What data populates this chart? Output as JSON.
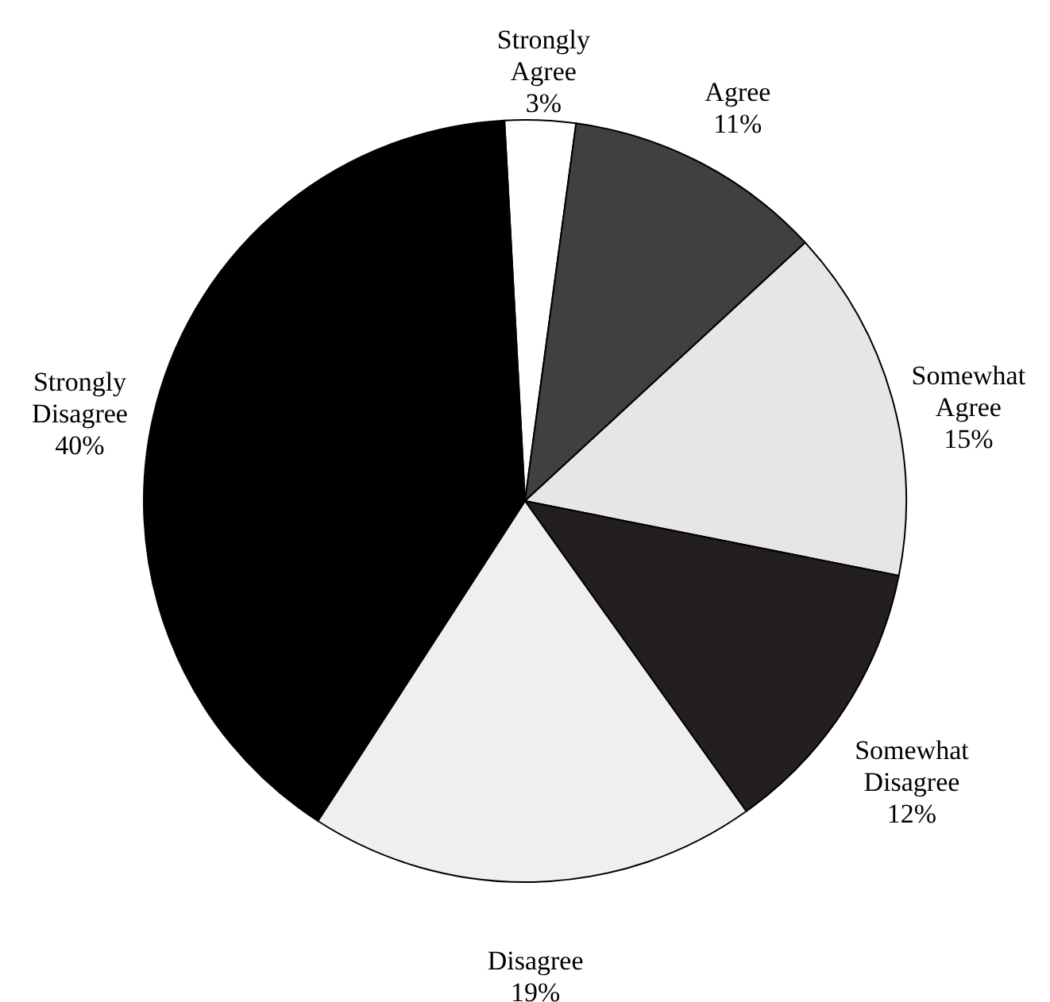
{
  "chart_data": {
    "type": "pie",
    "categories": [
      "Strongly Agree",
      "Agree",
      "Somewhat Agree",
      "Somewhat Disagree",
      "Disagree",
      "Strongly Disagree"
    ],
    "values": [
      3,
      11,
      15,
      12,
      19,
      40
    ],
    "colors": [
      "#ffffff",
      "#404040",
      "#e6e6e6",
      "#231f20",
      "#efefef",
      "#000000"
    ],
    "value_labels": [
      "3%",
      "11%",
      "15%",
      "12%",
      "19%",
      "40%"
    ],
    "legend": false
  }
}
